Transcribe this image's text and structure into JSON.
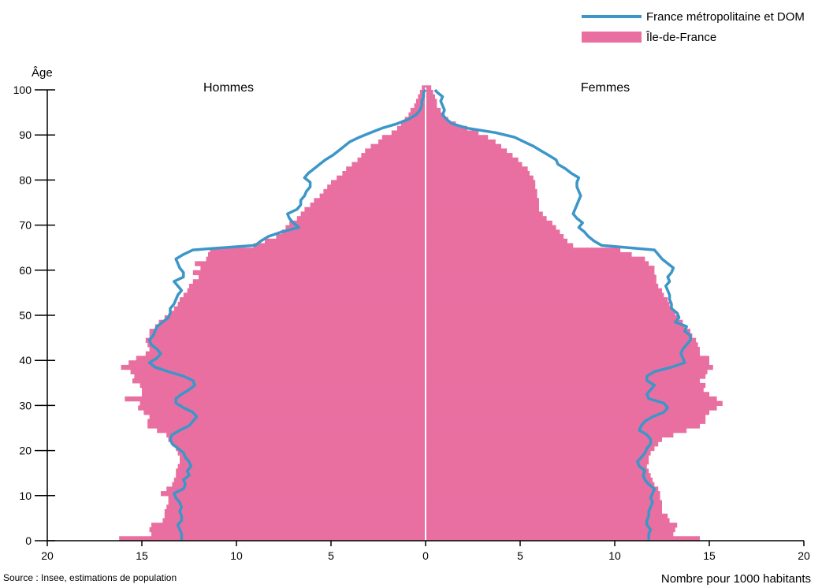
{
  "chart_data": {
    "type": "bar",
    "subtype": "population-pyramid",
    "y_axis_title": "Âge",
    "x_unit_label": "Nombre pour 1000 habitants",
    "left_label": "Hommes",
    "right_label": "Femmes",
    "x_range": [
      -20,
      20
    ],
    "x_ticks": [
      20,
      15,
      10,
      5,
      0,
      5,
      10,
      15,
      20
    ],
    "y_range": [
      0,
      100
    ],
    "y_ticks": [
      0,
      10,
      20,
      30,
      40,
      50,
      60,
      70,
      80,
      90,
      100
    ],
    "ages": [
      0,
      1,
      2,
      3,
      4,
      5,
      6,
      7,
      8,
      9,
      10,
      11,
      12,
      13,
      14,
      15,
      16,
      17,
      18,
      19,
      20,
      21,
      22,
      23,
      24,
      25,
      26,
      27,
      28,
      29,
      30,
      31,
      32,
      33,
      34,
      35,
      36,
      37,
      38,
      39,
      40,
      41,
      42,
      43,
      44,
      45,
      46,
      47,
      48,
      49,
      50,
      51,
      52,
      53,
      54,
      55,
      56,
      57,
      58,
      59,
      60,
      61,
      62,
      63,
      64,
      65,
      66,
      67,
      68,
      69,
      70,
      71,
      72,
      73,
      74,
      75,
      76,
      77,
      78,
      79,
      80,
      81,
      82,
      83,
      84,
      85,
      86,
      87,
      88,
      89,
      90,
      91,
      92,
      93,
      94,
      95,
      96,
      97,
      98,
      99,
      100
    ],
    "series": [
      {
        "name": "Île-de-France",
        "color": "#ea6fa1",
        "men": [
          16.2,
          14.5,
          14.6,
          14.5,
          13.9,
          13.8,
          13.8,
          13.7,
          13.6,
          13.6,
          14.0,
          13.7,
          13.4,
          13.3,
          13.2,
          13.2,
          13.1,
          13.0,
          13.0,
          13.1,
          13.2,
          13.4,
          13.6,
          13.7,
          14.2,
          14.7,
          14.7,
          14.6,
          14.9,
          15.2,
          15.1,
          15.9,
          15.0,
          15.0,
          15.1,
          15.5,
          15.4,
          15.6,
          16.1,
          15.7,
          15.3,
          14.8,
          14.6,
          14.7,
          14.8,
          14.6,
          14.6,
          14.3,
          14.1,
          13.8,
          13.5,
          13.3,
          13.1,
          13.0,
          12.8,
          12.6,
          12.5,
          12.3,
          12.0,
          12.3,
          11.9,
          12.2,
          11.6,
          11.5,
          11.4,
          9.1,
          8.5,
          7.9,
          7.6,
          7.4,
          7.2,
          6.8,
          6.6,
          6.4,
          6.1,
          5.9,
          5.6,
          5.4,
          5.2,
          5.0,
          4.7,
          4.4,
          4.2,
          3.9,
          3.6,
          3.4,
          3.2,
          2.9,
          2.5,
          2.3,
          1.8,
          1.5,
          1.3,
          1.1,
          0.9,
          0.8,
          0.6,
          0.5,
          0.4,
          0.3,
          0.2
        ],
        "women": [
          14.5,
          13.1,
          13.2,
          13.3,
          12.9,
          12.8,
          12.5,
          12.5,
          12.5,
          12.4,
          12.4,
          12.3,
          12.1,
          12.0,
          11.9,
          11.8,
          11.7,
          11.8,
          11.8,
          11.9,
          12.1,
          12.3,
          12.5,
          13.1,
          13.8,
          14.5,
          14.8,
          14.8,
          15.0,
          15.4,
          15.7,
          15.4,
          15.0,
          14.7,
          14.8,
          14.5,
          14.8,
          14.9,
          15.2,
          15.0,
          15.0,
          14.5,
          14.5,
          14.4,
          14.3,
          14.1,
          14.0,
          13.7,
          13.6,
          13.4,
          13.2,
          13.0,
          12.9,
          12.8,
          12.6,
          12.5,
          12.3,
          12.2,
          12.2,
          12.1,
          12.1,
          11.8,
          11.6,
          10.9,
          10.3,
          7.8,
          7.5,
          7.3,
          7.1,
          6.9,
          6.7,
          6.4,
          6.2,
          6.0,
          6.0,
          6.0,
          5.9,
          5.9,
          5.8,
          5.8,
          5.7,
          5.5,
          5.4,
          5.1,
          4.9,
          4.6,
          4.3,
          4.0,
          3.7,
          3.3,
          2.8,
          2.2,
          1.6,
          1.2,
          1.0,
          0.8,
          0.6,
          0.6,
          0.5,
          0.4,
          0.3
        ]
      },
      {
        "name": "France métropolitaine et DOM",
        "color": "#3c96c8",
        "men": [
          12.9,
          12.9,
          13.0,
          13.1,
          12.9,
          12.9,
          13.0,
          12.9,
          13.0,
          13.2,
          13.3,
          12.8,
          12.7,
          12.8,
          12.5,
          12.6,
          12.4,
          12.5,
          12.7,
          12.8,
          13.1,
          13.4,
          13.5,
          13.4,
          13.0,
          12.5,
          12.3,
          12.1,
          12.3,
          12.8,
          13.2,
          13.2,
          12.9,
          12.5,
          12.2,
          12.3,
          12.8,
          13.6,
          14.3,
          14.6,
          14.2,
          14.0,
          14.2,
          14.5,
          14.6,
          14.4,
          14.3,
          14.2,
          13.9,
          13.6,
          13.5,
          13.5,
          13.3,
          13.2,
          13.1,
          12.9,
          13.1,
          13.3,
          12.8,
          12.8,
          13.0,
          13.1,
          13.2,
          12.8,
          12.3,
          9.0,
          8.7,
          8.3,
          7.6,
          6.7,
          7.0,
          7.2,
          7.3,
          6.8,
          6.6,
          6.6,
          6.4,
          6.3,
          6.1,
          6.1,
          6.4,
          6.2,
          5.9,
          5.6,
          5.3,
          4.9,
          4.6,
          4.3,
          4.0,
          3.5,
          2.9,
          2.3,
          1.5,
          0.9,
          0.5,
          0.3,
          0.2,
          0.2,
          0.1,
          0.1,
          0.0
        ],
        "women": [
          11.8,
          11.8,
          11.9,
          11.7,
          11.7,
          11.8,
          11.8,
          11.9,
          12.0,
          11.9,
          12.0,
          12.1,
          11.8,
          11.6,
          11.5,
          11.6,
          11.3,
          11.2,
          11.4,
          11.6,
          11.7,
          11.9,
          11.9,
          11.7,
          11.3,
          11.4,
          11.6,
          12.0,
          12.6,
          12.8,
          12.6,
          11.8,
          11.7,
          11.9,
          12.1,
          11.7,
          11.7,
          12.1,
          13.0,
          13.7,
          13.6,
          13.5,
          13.6,
          13.8,
          14.0,
          14.0,
          13.7,
          13.8,
          13.2,
          13.4,
          13.3,
          13.0,
          13.0,
          12.9,
          12.9,
          12.8,
          12.7,
          12.9,
          12.8,
          13.0,
          13.1,
          12.8,
          12.5,
          12.3,
          12.1,
          9.3,
          8.9,
          8.6,
          8.4,
          8.1,
          8.3,
          8.0,
          7.8,
          7.9,
          8.0,
          8.1,
          8.2,
          8.1,
          8.0,
          8.0,
          8.1,
          7.7,
          7.4,
          7.0,
          6.9,
          6.5,
          6.1,
          5.7,
          5.2,
          4.7,
          3.7,
          2.2,
          1.4,
          1.1,
          0.9,
          1.0,
          0.9,
          0.8,
          0.9,
          0.6,
          0.5
        ]
      }
    ],
    "source": "Source : Insee, estimations de population"
  }
}
